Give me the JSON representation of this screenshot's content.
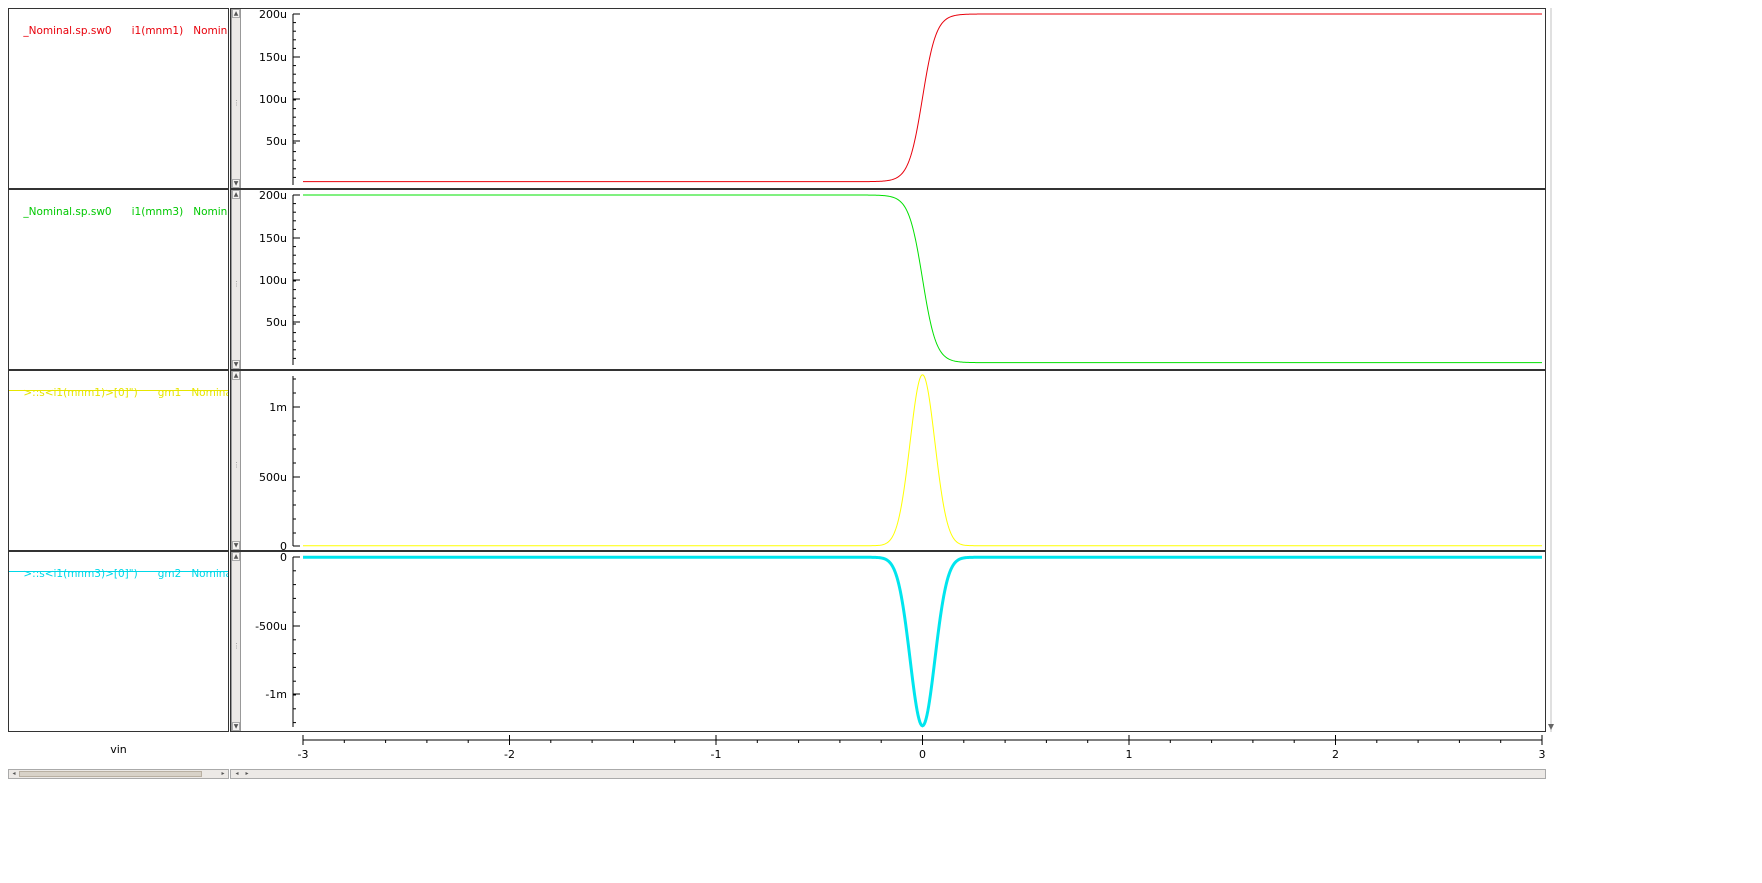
{
  "x_axis": {
    "label": "vin",
    "ticks": [
      "-3",
      "-2",
      "-1",
      "0",
      "1",
      "2",
      "3"
    ]
  },
  "panels": [
    {
      "legend": {
        "dataset": "_Nominal.sp.sw0",
        "signal": "i1(mnm1)",
        "corner": "Nominal"
      },
      "color": "#e8000b",
      "yticks": [
        "200u",
        "150u",
        "100u",
        "50u"
      ]
    },
    {
      "legend": {
        "dataset": "_Nominal.sp.sw0",
        "signal": "i1(mnm3)",
        "corner": "Nominal"
      },
      "color": "#00e000",
      "yticks": [
        "200u",
        "150u",
        "100u",
        "50u"
      ]
    },
    {
      "legend": {
        "dataset": ">::s<i1(mnm1)>[0]\")",
        "signal": "gm1",
        "corner": "Nominal"
      },
      "color": "#ffff00",
      "yticks": [
        "1m",
        "500u",
        "0"
      ]
    },
    {
      "legend": {
        "dataset": ">::s<i1(mnm3)>[0]\")",
        "signal": "gm2",
        "corner": "Nominal"
      },
      "color": "#00e5ee",
      "yticks": [
        "0",
        "-500u",
        "-1m"
      ]
    }
  ],
  "chart_data": [
    {
      "type": "line",
      "xlabel": "vin",
      "series": [
        {
          "name": "i1(mnm1)",
          "shape": "rising sigmoid",
          "x": [
            -3,
            -0.3,
            -0.15,
            -0.1,
            -0.05,
            0,
            0.05,
            0.1,
            0.15,
            0.3,
            3
          ],
          "y": [
            2e-06,
            2e-06,
            6e-06,
            2e-05,
            6e-05,
            0.0001,
            0.00016,
            0.000185,
            0.000196,
            0.0002,
            0.0002
          ]
        }
      ],
      "ylim": [
        0,
        0.0002
      ]
    },
    {
      "type": "line",
      "xlabel": "vin",
      "series": [
        {
          "name": "i1(mnm3)",
          "shape": "falling sigmoid",
          "x": [
            -3,
            -0.3,
            -0.15,
            -0.1,
            -0.05,
            0,
            0.05,
            0.1,
            0.15,
            0.3,
            3
          ],
          "y": [
            0.0002,
            0.0002,
            0.000196,
            0.000185,
            0.00016,
            0.0001,
            6e-05,
            2e-05,
            6e-06,
            2e-06,
            2e-06
          ]
        }
      ],
      "ylim": [
        0,
        0.0002
      ]
    },
    {
      "type": "line",
      "xlabel": "vin",
      "series": [
        {
          "name": "gm1",
          "shape": "positive peak",
          "x": [
            -3,
            -0.2,
            -0.1,
            -0.05,
            0,
            0.05,
            0.1,
            0.2,
            3
          ],
          "y": [
            0,
            2e-05,
            0.0004,
            0.001,
            0.00123,
            0.001,
            0.0004,
            2e-05,
            0
          ]
        }
      ],
      "ylim": [
        0,
        0.00125
      ]
    },
    {
      "type": "line",
      "xlabel": "vin",
      "series": [
        {
          "name": "gm2",
          "shape": "negative peak",
          "x": [
            -3,
            -0.2,
            -0.1,
            -0.05,
            0,
            0.05,
            0.1,
            0.2,
            3
          ],
          "y": [
            0,
            -2e-05,
            -0.0004,
            -0.001,
            -0.00123,
            -0.001,
            -0.0004,
            -2e-05,
            0
          ]
        }
      ],
      "ylim": [
        -0.00125,
        0
      ]
    }
  ]
}
